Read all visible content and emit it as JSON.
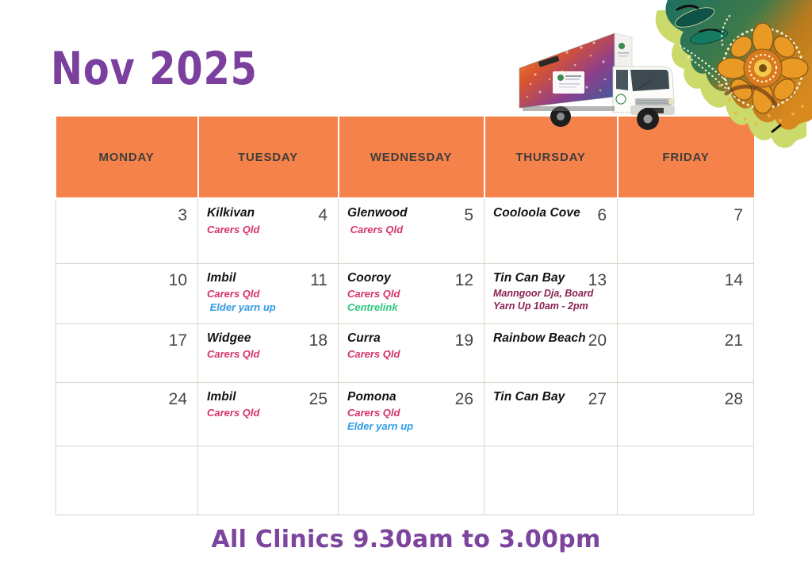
{
  "title": "Nov 2025",
  "footer": "All Clinics 9.30am to 3.00pm",
  "decorations": {
    "truck": "mobile-clinic-truck-photo",
    "corner": "aboriginal-dot-art"
  },
  "calendar": {
    "header_color": "#f6824b",
    "title_color": "#7b3f9e",
    "footer_color": "#7c449c",
    "event_colors": {
      "pink": "#d6336c",
      "blue": "#2d9be5",
      "green": "#2bc77d",
      "maroon": "#8a2150"
    },
    "weekdays": [
      "MONDAY",
      "TUESDAY",
      "WEDNESDAY",
      "THURSDAY",
      "FRIDAY"
    ],
    "weeks": [
      {
        "days": [
          {
            "date": "3",
            "location": "",
            "events": []
          },
          {
            "date": "4",
            "location": "Kilkivan",
            "events": [
              {
                "text": "Carers Qld",
                "color_key": "pink"
              }
            ]
          },
          {
            "date": "5",
            "location": "Glenwood",
            "events": [
              {
                "text": " Carers Qld",
                "color_key": "pink"
              }
            ]
          },
          {
            "date": "6",
            "location": "Cooloola Cove",
            "events": []
          },
          {
            "date": "7",
            "location": "",
            "events": []
          }
        ]
      },
      {
        "days": [
          {
            "date": "10",
            "location": "",
            "events": []
          },
          {
            "date": "11",
            "location": "Imbil",
            "events": [
              {
                "text": "Carers Qld",
                "color_key": "pink"
              },
              {
                "text": " Elder yarn up",
                "color_key": "blue"
              }
            ]
          },
          {
            "date": "12",
            "location": "Cooroy",
            "events": [
              {
                "text": "Carers Qld",
                "color_key": "pink"
              },
              {
                "text": "Centrelink",
                "color_key": "green"
              }
            ]
          },
          {
            "date": "13",
            "location": "Tin Can Bay",
            "events": [
              {
                "text": "Manngoor Dja, Board Yarn Up 10am - 2pm",
                "color_key": "maroon",
                "variant": "note"
              }
            ]
          },
          {
            "date": "14",
            "location": "",
            "events": []
          }
        ]
      },
      {
        "days": [
          {
            "date": "17",
            "location": "",
            "events": []
          },
          {
            "date": "18",
            "location": "Widgee",
            "events": [
              {
                "text": "Carers Qld",
                "color_key": "pink"
              }
            ]
          },
          {
            "date": "19",
            "location": "Curra",
            "events": [
              {
                "text": "Carers Qld",
                "color_key": "pink"
              }
            ]
          },
          {
            "date": "20",
            "location": "Rainbow Beach",
            "events": []
          },
          {
            "date": "21",
            "location": "",
            "events": []
          }
        ]
      },
      {
        "days": [
          {
            "date": "24",
            "location": "",
            "events": []
          },
          {
            "date": "25",
            "location": "Imbil",
            "events": [
              {
                "text": "Carers Qld",
                "color_key": "pink"
              }
            ]
          },
          {
            "date": "26",
            "location": "Pomona",
            "events": [
              {
                "text": "Carers Qld",
                "color_key": "pink"
              },
              {
                "text": "Elder yarn up",
                "color_key": "blue"
              }
            ]
          },
          {
            "date": "27",
            "location": "Tin Can Bay",
            "events": []
          },
          {
            "date": "28",
            "location": "",
            "events": []
          }
        ]
      },
      {
        "days": [
          {
            "date": "",
            "location": "",
            "events": []
          },
          {
            "date": "",
            "location": "",
            "events": []
          },
          {
            "date": "",
            "location": "",
            "events": []
          },
          {
            "date": "",
            "location": "",
            "events": []
          },
          {
            "date": "",
            "location": "",
            "events": []
          }
        ]
      }
    ]
  }
}
